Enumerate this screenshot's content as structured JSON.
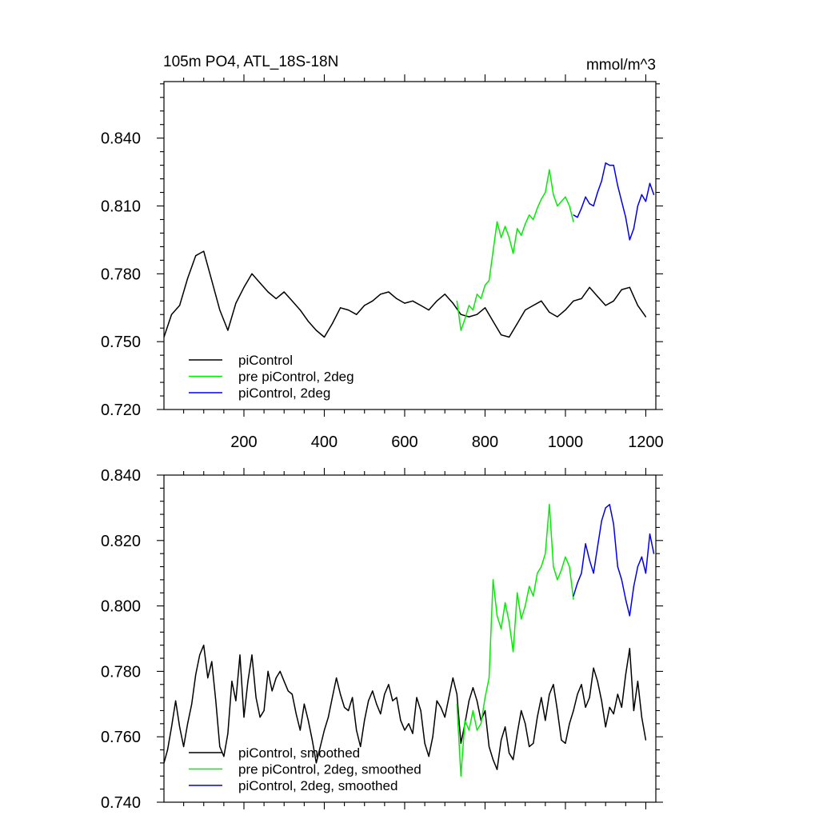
{
  "chart_data": [
    {
      "type": "line",
      "title": "105m PO4, ATL_18S-18N",
      "units": "mmol/m^3",
      "xlim": [
        1,
        1225
      ],
      "ylim": [
        0.72,
        0.865
      ],
      "xticks": [
        200,
        400,
        600,
        800,
        1000,
        1200
      ],
      "xtick_labels": [
        "200",
        "400",
        "600",
        "800",
        "1000",
        "1200"
      ],
      "yticks": [
        0.72,
        0.75,
        0.78,
        0.81,
        0.84
      ],
      "ytick_labels": [
        "0.720",
        "0.750",
        "0.780",
        "0.810",
        "0.840"
      ],
      "grid": false,
      "legend_position": "bottom-left",
      "series": [
        {
          "name": "piControl",
          "color": "#000000",
          "x": [
            1,
            20,
            40,
            60,
            80,
            100,
            120,
            140,
            160,
            180,
            200,
            220,
            240,
            260,
            280,
            300,
            320,
            340,
            360,
            380,
            400,
            420,
            440,
            460,
            480,
            500,
            520,
            540,
            560,
            580,
            600,
            620,
            640,
            660,
            680,
            700,
            720,
            740,
            760,
            780,
            800,
            820,
            840,
            860,
            880,
            900,
            920,
            940,
            960,
            980,
            1000,
            1020,
            1040,
            1060,
            1080,
            1100,
            1120,
            1140,
            1160,
            1180,
            1200
          ],
          "values": [
            0.752,
            0.762,
            0.766,
            0.778,
            0.788,
            0.79,
            0.777,
            0.764,
            0.755,
            0.767,
            0.774,
            0.78,
            0.776,
            0.772,
            0.769,
            0.772,
            0.768,
            0.764,
            0.759,
            0.755,
            0.752,
            0.758,
            0.765,
            0.764,
            0.762,
            0.766,
            0.768,
            0.771,
            0.772,
            0.769,
            0.767,
            0.768,
            0.766,
            0.764,
            0.768,
            0.771,
            0.767,
            0.762,
            0.761,
            0.762,
            0.765,
            0.759,
            0.753,
            0.752,
            0.758,
            0.764,
            0.766,
            0.768,
            0.763,
            0.761,
            0.764,
            0.768,
            0.769,
            0.774,
            0.77,
            0.766,
            0.768,
            0.773,
            0.774,
            0.766,
            0.761
          ]
        },
        {
          "name": "pre piControl, 2deg",
          "color": "#00ee00",
          "x": [
            730,
            740,
            750,
            760,
            770,
            780,
            790,
            800,
            810,
            820,
            830,
            840,
            850,
            860,
            870,
            880,
            890,
            900,
            910,
            920,
            930,
            940,
            950,
            960,
            970,
            980,
            990,
            1000,
            1010,
            1020
          ],
          "values": [
            0.768,
            0.755,
            0.76,
            0.766,
            0.764,
            0.771,
            0.769,
            0.775,
            0.777,
            0.79,
            0.803,
            0.796,
            0.801,
            0.796,
            0.789,
            0.8,
            0.797,
            0.802,
            0.806,
            0.804,
            0.809,
            0.813,
            0.816,
            0.826,
            0.815,
            0.81,
            0.812,
            0.814,
            0.81,
            0.803
          ]
        },
        {
          "name": "piControl, 2deg",
          "color": "#0000ee",
          "x": [
            1020,
            1030,
            1040,
            1050,
            1060,
            1070,
            1080,
            1090,
            1100,
            1110,
            1120,
            1130,
            1140,
            1150,
            1160,
            1170,
            1180,
            1190,
            1200,
            1210,
            1220
          ],
          "values": [
            0.806,
            0.805,
            0.809,
            0.814,
            0.811,
            0.81,
            0.816,
            0.821,
            0.829,
            0.828,
            0.828,
            0.819,
            0.812,
            0.805,
            0.795,
            0.8,
            0.81,
            0.815,
            0.812,
            0.82,
            0.815
          ]
        }
      ]
    },
    {
      "type": "line",
      "xlim": [
        1,
        1225
      ],
      "ylim": [
        0.74,
        0.84
      ],
      "xticks": [
        200,
        400,
        600,
        800,
        1000,
        1200
      ],
      "yticks": [
        0.74,
        0.76,
        0.78,
        0.8,
        0.82,
        0.84
      ],
      "ytick_labels": [
        "0.740",
        "0.760",
        "0.780",
        "0.800",
        "0.820",
        "0.840"
      ],
      "grid": false,
      "legend_position": "bottom-left",
      "series": [
        {
          "name": "piControl, smoothed",
          "color": "#000000",
          "x": [
            1,
            10,
            20,
            30,
            40,
            50,
            60,
            70,
            80,
            90,
            100,
            110,
            120,
            130,
            140,
            150,
            160,
            170,
            180,
            190,
            200,
            210,
            220,
            230,
            240,
            250,
            260,
            270,
            280,
            290,
            300,
            310,
            320,
            330,
            340,
            350,
            360,
            370,
            380,
            390,
            400,
            410,
            420,
            430,
            440,
            450,
            460,
            470,
            480,
            490,
            500,
            510,
            520,
            530,
            540,
            550,
            560,
            570,
            580,
            590,
            600,
            610,
            620,
            630,
            640,
            650,
            660,
            670,
            680,
            690,
            700,
            710,
            720,
            730,
            740,
            750,
            760,
            770,
            780,
            790,
            800,
            810,
            820,
            830,
            840,
            850,
            860,
            870,
            880,
            890,
            900,
            910,
            920,
            930,
            940,
            950,
            960,
            970,
            980,
            990,
            1000,
            1010,
            1020,
            1030,
            1040,
            1050,
            1060,
            1070,
            1080,
            1090,
            1100,
            1110,
            1120,
            1130,
            1140,
            1150,
            1160,
            1170,
            1180,
            1190,
            1200
          ],
          "values": [
            0.752,
            0.756,
            0.763,
            0.771,
            0.763,
            0.757,
            0.764,
            0.77,
            0.779,
            0.785,
            0.788,
            0.778,
            0.783,
            0.771,
            0.757,
            0.754,
            0.761,
            0.777,
            0.771,
            0.785,
            0.766,
            0.777,
            0.785,
            0.772,
            0.766,
            0.768,
            0.78,
            0.774,
            0.778,
            0.78,
            0.777,
            0.774,
            0.773,
            0.767,
            0.762,
            0.77,
            0.765,
            0.759,
            0.752,
            0.757,
            0.762,
            0.766,
            0.772,
            0.778,
            0.773,
            0.769,
            0.768,
            0.772,
            0.762,
            0.757,
            0.765,
            0.771,
            0.774,
            0.77,
            0.767,
            0.773,
            0.776,
            0.771,
            0.772,
            0.765,
            0.762,
            0.764,
            0.761,
            0.772,
            0.768,
            0.758,
            0.754,
            0.76,
            0.771,
            0.769,
            0.766,
            0.772,
            0.778,
            0.773,
            0.758,
            0.764,
            0.771,
            0.775,
            0.771,
            0.765,
            0.768,
            0.757,
            0.753,
            0.75,
            0.759,
            0.763,
            0.755,
            0.753,
            0.761,
            0.768,
            0.764,
            0.757,
            0.758,
            0.766,
            0.772,
            0.765,
            0.773,
            0.776,
            0.768,
            0.759,
            0.758,
            0.764,
            0.768,
            0.773,
            0.776,
            0.769,
            0.772,
            0.781,
            0.777,
            0.771,
            0.763,
            0.769,
            0.767,
            0.773,
            0.769,
            0.779,
            0.787,
            0.768,
            0.777,
            0.766,
            0.759
          ]
        },
        {
          "name": "pre piControl, 2deg, smoothed",
          "color": "#00ee00",
          "x": [
            730,
            740,
            750,
            760,
            770,
            780,
            790,
            800,
            810,
            820,
            830,
            840,
            850,
            860,
            870,
            880,
            890,
            900,
            910,
            920,
            930,
            940,
            950,
            960,
            970,
            980,
            990,
            1000,
            1010,
            1020
          ],
          "values": [
            0.77,
            0.748,
            0.765,
            0.762,
            0.768,
            0.762,
            0.764,
            0.772,
            0.778,
            0.808,
            0.797,
            0.793,
            0.801,
            0.795,
            0.786,
            0.804,
            0.796,
            0.8,
            0.806,
            0.803,
            0.81,
            0.812,
            0.816,
            0.831,
            0.812,
            0.808,
            0.811,
            0.815,
            0.812,
            0.802
          ]
        },
        {
          "name": "piControl, 2deg, smoothed",
          "color": "#0000ee",
          "x": [
            1020,
            1030,
            1040,
            1050,
            1060,
            1070,
            1080,
            1090,
            1100,
            1110,
            1120,
            1130,
            1140,
            1150,
            1160,
            1170,
            1180,
            1190,
            1200,
            1210,
            1220
          ],
          "values": [
            0.803,
            0.807,
            0.81,
            0.819,
            0.814,
            0.81,
            0.818,
            0.826,
            0.83,
            0.831,
            0.825,
            0.812,
            0.808,
            0.802,
            0.797,
            0.806,
            0.812,
            0.815,
            0.81,
            0.822,
            0.816
          ]
        }
      ]
    }
  ]
}
